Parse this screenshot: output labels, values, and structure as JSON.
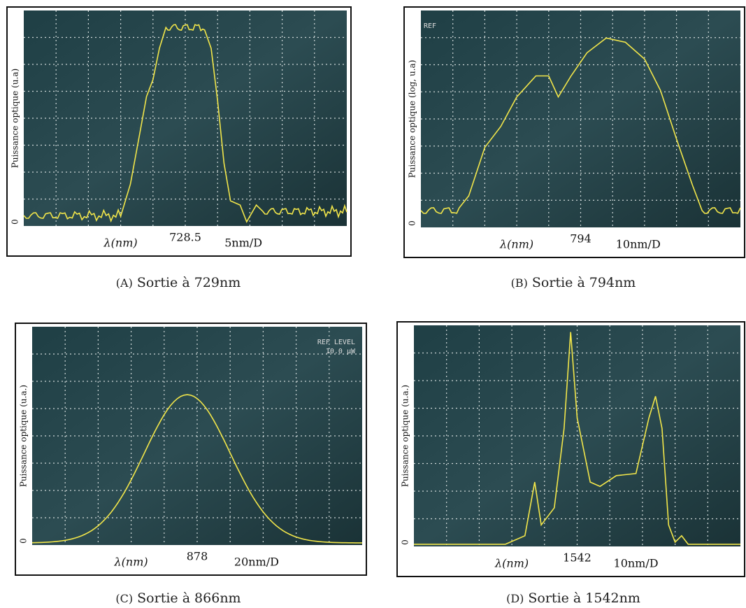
{
  "panels": [
    {
      "y_label": "Puissance optique  (u.a)",
      "zero_label": "0",
      "x_label": "λ(nm)",
      "center": "728.5",
      "span": "5nm/D",
      "caption_letter": "(A)",
      "caption": "Sortie à 729nm",
      "screen_texts": []
    },
    {
      "y_label": "Puissance optique (log, u.a)",
      "zero_label": "0",
      "x_label": "λ(nm)",
      "center": "794",
      "span": "10nm/D",
      "caption_letter": "(B)",
      "caption": "Sortie à 794nm",
      "screen_texts": [
        "REF"
      ]
    },
    {
      "y_label": "Puissance optique (u.a.)",
      "zero_label": "0",
      "x_label": "λ(nm)",
      "center": "878",
      "span": "20nm/D",
      "caption_letter": "(C)",
      "caption": "Sortie à 866nm",
      "screen_texts": [
        "REF LEVEL",
        "10.0 μW"
      ]
    },
    {
      "y_label": "Puissance optique (u.a.)",
      "zero_label": "0",
      "x_label": "λ(nm)",
      "center": "1542",
      "span": "10nm/D",
      "caption_letter": "(D)",
      "caption": "Sortie à 1542nm",
      "screen_texts": []
    }
  ]
}
